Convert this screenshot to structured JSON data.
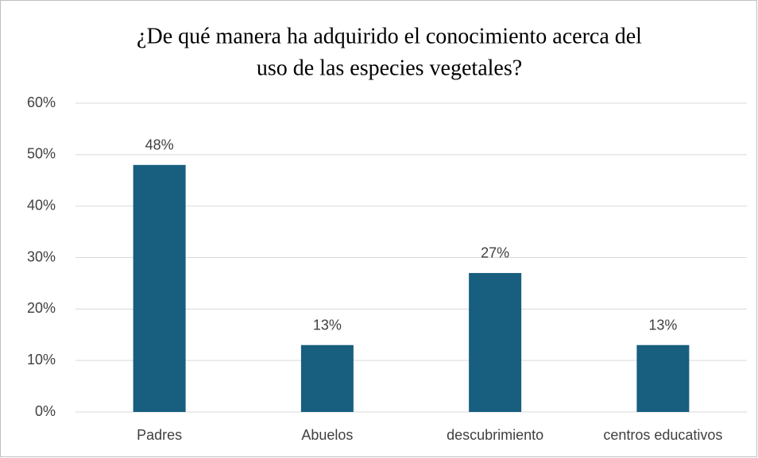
{
  "chart_data": {
    "type": "bar",
    "title": [
      "¿De qué manera ha adquirido el conocimiento acerca del",
      "uso de las especies vegetales?"
    ],
    "categories": [
      "Padres",
      "Abuelos",
      "descubrimiento",
      "centros educativos"
    ],
    "values": [
      48,
      13,
      27,
      13
    ],
    "value_labels": [
      "48%",
      "13%",
      "27%",
      "13%"
    ],
    "color": "#175e7f",
    "ylim": [
      0,
      60
    ],
    "yticks": [
      {
        "value": 0,
        "label": "0%"
      },
      {
        "value": 10,
        "label": "10%"
      },
      {
        "value": 20,
        "label": "20%"
      },
      {
        "value": 30,
        "label": "30%"
      },
      {
        "value": 40,
        "label": "40%"
      },
      {
        "value": 50,
        "label": "50%"
      },
      {
        "value": 60,
        "label": "60%"
      }
    ],
    "grid": true
  }
}
